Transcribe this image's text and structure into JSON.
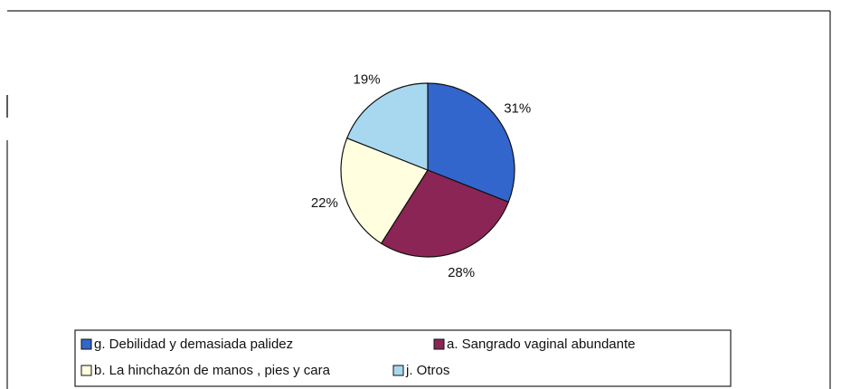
{
  "chart_data": {
    "type": "pie",
    "categories": [
      "g. Debilidad y demasiada palidez",
      "a. Sangrado  vaginal  abundante",
      "b. La hinchazón de manos , pies y cara",
      "j. Otros"
    ],
    "values": [
      31,
      28,
      22,
      19
    ],
    "value_labels": [
      "31%",
      "28%",
      "22%",
      "19%"
    ],
    "colors": [
      "#3366cc",
      "#8b2555",
      "#ffffe0",
      "#a8d8f0"
    ]
  }
}
